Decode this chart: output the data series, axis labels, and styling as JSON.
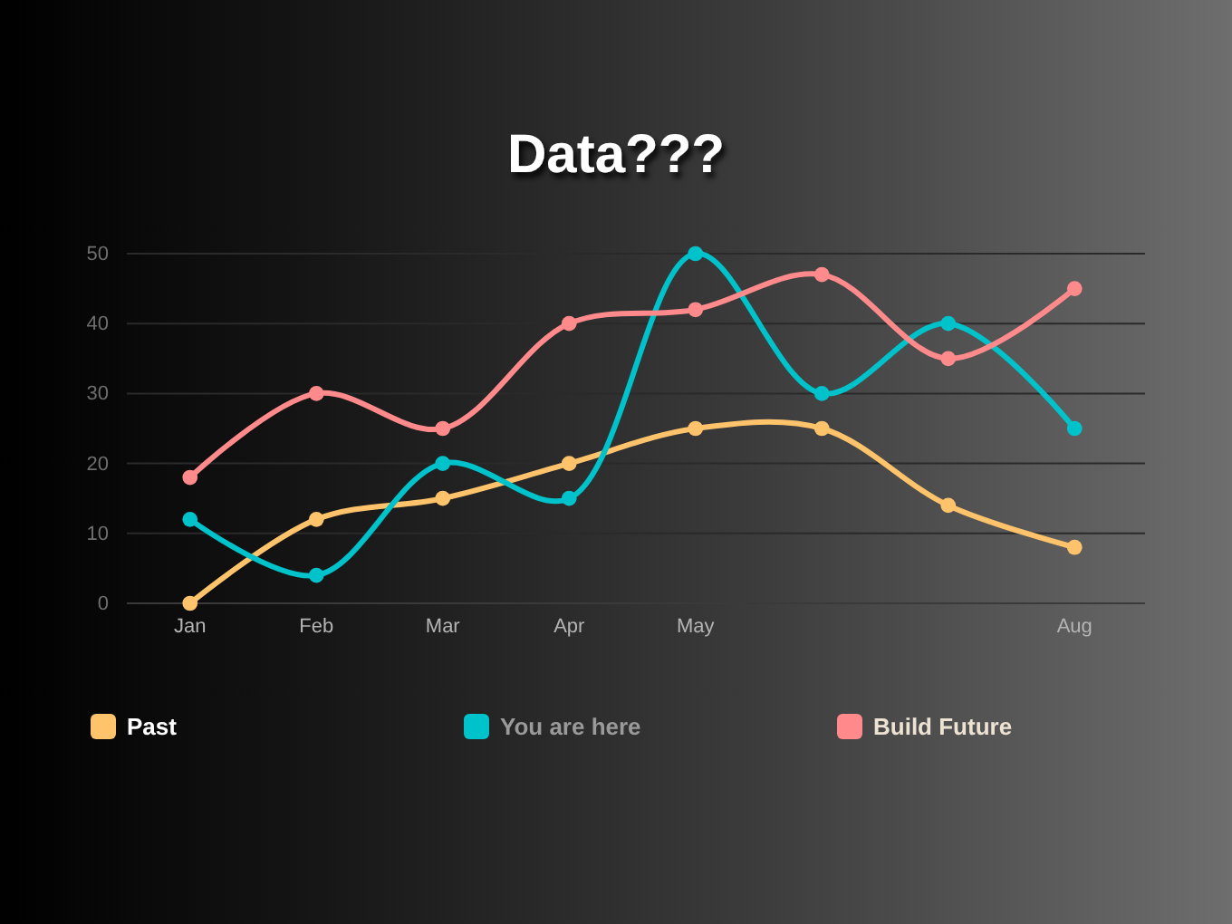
{
  "chart_data": {
    "type": "line",
    "title": "Data???",
    "categories": [
      "Jan",
      "Feb",
      "Mar",
      "Apr",
      "May",
      null,
      null,
      "Aug"
    ],
    "series": [
      {
        "name": "Past",
        "color": "#ffc46b",
        "values": [
          0,
          12,
          15,
          20,
          25,
          25,
          14,
          8
        ]
      },
      {
        "name": "You are here",
        "color": "#00c2cb",
        "values": [
          12,
          4,
          20,
          15,
          50,
          30,
          40,
          25
        ]
      },
      {
        "name": "Build Future",
        "color": "#ff8a8c",
        "values": [
          18,
          30,
          25,
          40,
          42,
          47,
          35,
          45
        ]
      }
    ],
    "ylim": [
      0,
      50
    ],
    "yticks": [
      0,
      10,
      20,
      30,
      40,
      50
    ],
    "grid": "y",
    "legend": "bottom",
    "marker": "circle",
    "line_style": "solid"
  }
}
